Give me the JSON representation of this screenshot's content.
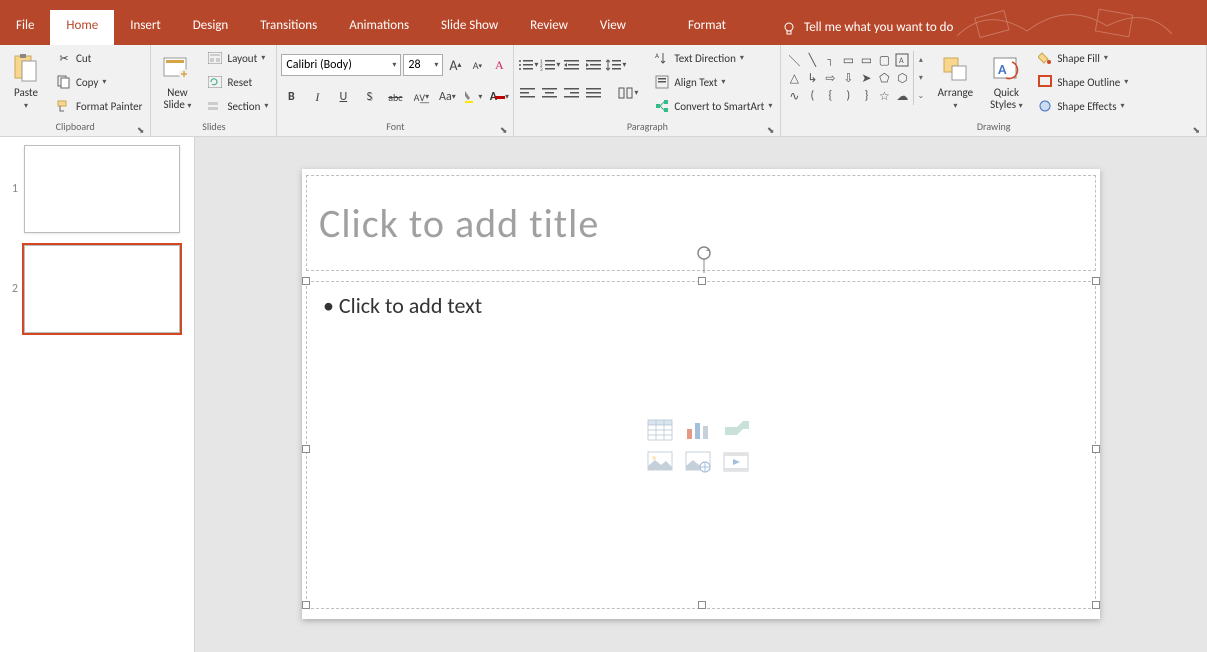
{
  "colors": {
    "accent": "#b7472a",
    "selection": "#d24726",
    "ribbon_bg": "#f1f1f1",
    "canvas_bg": "#e6e6e6"
  },
  "tabs": {
    "items": [
      "File",
      "Home",
      "Insert",
      "Design",
      "Transitions",
      "Animations",
      "Slide Show",
      "Review",
      "View",
      "Format"
    ],
    "active_index": 1,
    "tell_me": "Tell me what you want to do"
  },
  "ribbon": {
    "clipboard": {
      "label": "Clipboard",
      "paste": "Paste",
      "cut": "Cut",
      "copy": "Copy",
      "format_painter": "Format Painter"
    },
    "slides": {
      "label": "Slides",
      "new_slide": "New\nSlide",
      "new_slide_line1": "New",
      "new_slide_line2": "Slide",
      "layout": "Layout",
      "reset": "Reset",
      "section": "Section"
    },
    "font": {
      "label": "Font",
      "name": "Calibri (Body)",
      "size": "28",
      "grow": "A",
      "shrink": "A",
      "clear": "Aᵥ",
      "bold": "B",
      "italic": "I",
      "underline": "U",
      "shadow": "S",
      "strike": "abc",
      "spacing": "AV",
      "case": "Aa"
    },
    "paragraph": {
      "label": "Paragraph",
      "text_direction": "Text Direction",
      "align_text": "Align Text",
      "smartart": "Convert to SmartArt"
    },
    "drawing": {
      "label": "Drawing",
      "arrange": "Arrange",
      "quick_styles": "Quick\nStyles",
      "quick_line1": "Quick",
      "quick_line2": "Styles",
      "shape_fill": "Shape Fill",
      "shape_outline": "Shape Outline",
      "shape_effects": "Shape Effects"
    }
  },
  "thumbnails": {
    "items": [
      {
        "n": "1",
        "selected": false
      },
      {
        "n": "2",
        "selected": true
      }
    ]
  },
  "slide": {
    "title_placeholder": "Click to add title",
    "body_placeholder": "• Click to add text",
    "insert_icons": [
      "table",
      "chart",
      "smartart",
      "picture",
      "online-picture",
      "video"
    ]
  }
}
